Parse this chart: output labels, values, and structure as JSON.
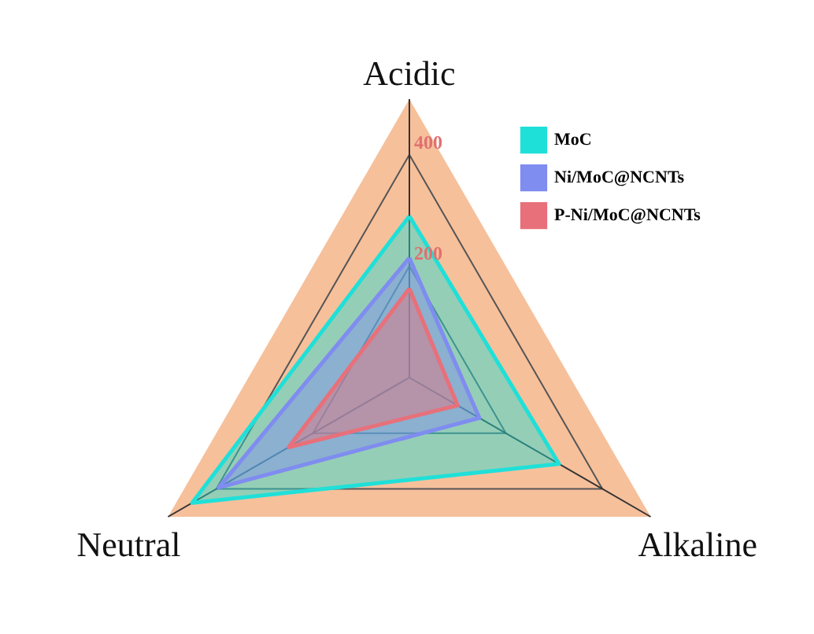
{
  "chart_data": {
    "type": "radar",
    "categories": [
      "Acidic",
      "Alkaline",
      "Neutral"
    ],
    "series": [
      {
        "name": "MoC",
        "color": "#1fe0d8",
        "values": [
          290,
          310,
          450
        ]
      },
      {
        "name": "Ni/MoC@NCNTs",
        "color": "#7f8cf0",
        "values": [
          215,
          145,
          395
        ]
      },
      {
        "name": "P-Ni/MoC@NCNTs",
        "color": "#e8707a",
        "values": [
          160,
          100,
          250
        ]
      }
    ],
    "ylim": [
      0,
      500
    ],
    "yticks": [
      200,
      400
    ],
    "grid": true,
    "legend": "top right"
  }
}
